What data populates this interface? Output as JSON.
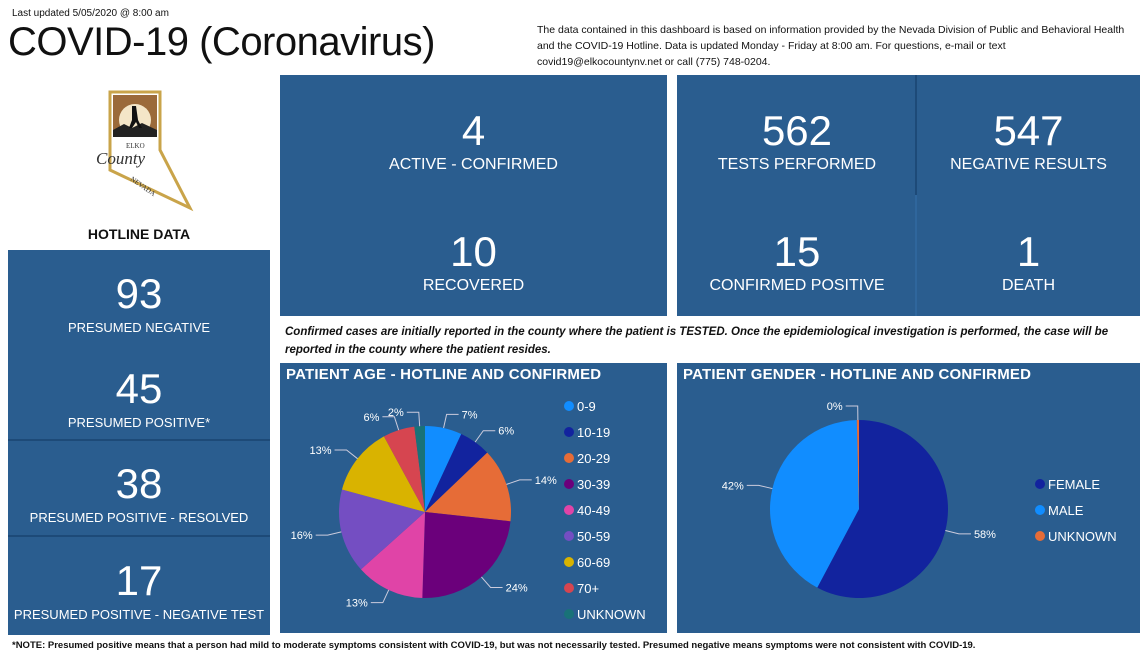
{
  "header": {
    "updated": "Last updated 5/05/2020 @ 8:00 am",
    "title": "COVID-19 (Coronavirus)",
    "info": "The data contained in this dashboard is based on information provided by the Nevada Division of Public and Behavioral Health and the COVID-19 Hotline.  Data is updated Monday - Friday at 8:00 am.  For questions, e-mail or text covid19@elkocountynv.net or call (775) 748-0204."
  },
  "logo": {
    "text_top": "ELKO",
    "text_main": "County",
    "text_bottom": "NEVADA"
  },
  "hotline": {
    "title": "HOTLINE DATA",
    "items": [
      {
        "value": "93",
        "label": "PRESUMED NEGATIVE"
      },
      {
        "value": "45",
        "label": "PRESUMED POSITIVE*"
      },
      {
        "value": "38",
        "label": "PRESUMED POSITIVE - RESOLVED"
      },
      {
        "value": "17",
        "label": "PRESUMED POSITIVE - NEGATIVE TEST"
      }
    ]
  },
  "confirmed": {
    "items": [
      {
        "value": "4",
        "label": "ACTIVE - CONFIRMED"
      },
      {
        "value": "10",
        "label": "RECOVERED"
      }
    ]
  },
  "tests": {
    "items": [
      {
        "value": "562",
        "label": "TESTS PERFORMED"
      },
      {
        "value": "547",
        "label": "NEGATIVE RESULTS"
      },
      {
        "value": "15",
        "label": "CONFIRMED POSITIVE"
      },
      {
        "value": "1",
        "label": "DEATH"
      }
    ]
  },
  "note": "Confirmed cases are initially reported in the county where the patient is TESTED.  Once the epidemiological investigation is performed, the case will be reported in the county where the patient resides.",
  "footer": "*NOTE: Presumed positive means that a person had mild to moderate symptoms consistent with COVID-19, but was not necessarily tested.  Presumed negative means symptoms were not consistent with COVID-19.",
  "chart_data": [
    {
      "type": "pie",
      "title": "PATIENT AGE - HOTLINE AND CONFIRMED",
      "categories": [
        "0-9",
        "10-19",
        "20-29",
        "30-39",
        "40-49",
        "50-59",
        "60-69",
        "70+",
        "UNKNOWN"
      ],
      "values": [
        7,
        6,
        14,
        24,
        13,
        16,
        13,
        6,
        2
      ],
      "labels": [
        "7%",
        "6%",
        "14%",
        "24%",
        "13%",
        "16%",
        "13%",
        "6%",
        "2%"
      ],
      "colors": [
        "#118dff",
        "#12239e",
        "#e66c37",
        "#6b007b",
        "#e044a7",
        "#744ec2",
        "#d9b300",
        "#d64550",
        "#197278"
      ],
      "legend": "right"
    },
    {
      "type": "pie",
      "title": "PATIENT GENDER - HOTLINE AND CONFIRMED",
      "categories": [
        "FEMALE",
        "MALE",
        "UNKNOWN"
      ],
      "values": [
        58,
        42,
        0.4
      ],
      "labels": [
        "58%",
        "42%",
        "0%"
      ],
      "colors": [
        "#12239e",
        "#118dff",
        "#e66c37"
      ],
      "legend": "right"
    }
  ]
}
